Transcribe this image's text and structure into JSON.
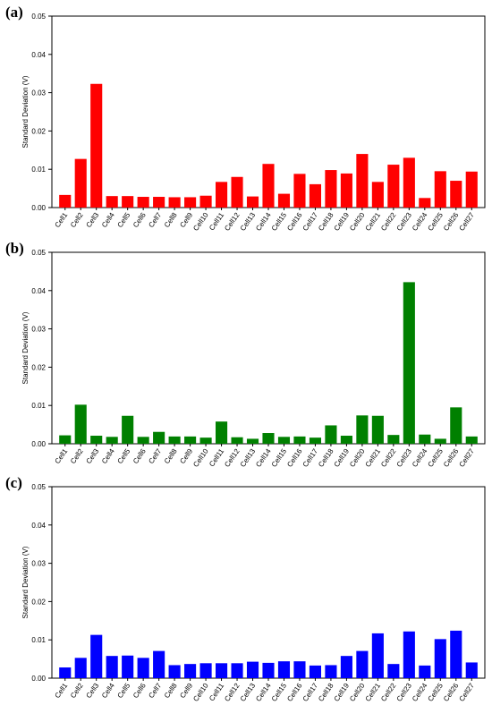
{
  "chart_data": [
    {
      "type": "bar",
      "panel_label": "(a)",
      "color": "#ff0000",
      "ylabel": "Standard Deviation (V)",
      "ylim": [
        0,
        0.05
      ],
      "yticks": [
        "0.00",
        "0.01",
        "0.02",
        "0.03",
        "0.04",
        "0.05"
      ],
      "grid": false,
      "categories": [
        "Cell1",
        "Cell2",
        "Cell3",
        "Cell4",
        "Cell5",
        "Cell6",
        "Cell7",
        "Cell8",
        "Cell9",
        "Cell10",
        "Cell11",
        "Cell12",
        "Cell13",
        "Cell14",
        "Cell15",
        "Cell16",
        "Cell17",
        "Cell18",
        "Cell19",
        "Cell20",
        "Cell21",
        "Cell22",
        "Cell23",
        "Cell24",
        "Cell25",
        "Cell26",
        "Cell27"
      ],
      "values": [
        0.0033,
        0.0127,
        0.0323,
        0.003,
        0.003,
        0.0028,
        0.0028,
        0.0027,
        0.0027,
        0.0031,
        0.0067,
        0.008,
        0.0029,
        0.0114,
        0.0036,
        0.0088,
        0.0061,
        0.0098,
        0.0089,
        0.014,
        0.0067,
        0.0112,
        0.013,
        0.0025,
        0.0095,
        0.007,
        0.0094
      ]
    },
    {
      "type": "bar",
      "panel_label": "(b)",
      "color": "#008000",
      "ylabel": "Standard Deviation (V)",
      "ylim": [
        0,
        0.05
      ],
      "yticks": [
        "0.00",
        "0.01",
        "0.02",
        "0.03",
        "0.04",
        "0.05"
      ],
      "grid": false,
      "categories": [
        "Cell1",
        "Cell2",
        "Cell3",
        "Cell4",
        "Cell5",
        "Cell6",
        "Cell7",
        "Cell8",
        "Cell9",
        "Cell10",
        "Cell11",
        "Cell12",
        "Cell13",
        "Cell14",
        "Cell15",
        "Cell16",
        "Cell17",
        "Cell18",
        "Cell19",
        "Cell20",
        "Cell21",
        "Cell22",
        "Cell23",
        "Cell24",
        "Cell25",
        "Cell26",
        "Cell27"
      ],
      "values": [
        0.0022,
        0.0102,
        0.0021,
        0.0018,
        0.0073,
        0.0018,
        0.0031,
        0.0019,
        0.0019,
        0.0016,
        0.0058,
        0.0017,
        0.0013,
        0.0028,
        0.0018,
        0.0019,
        0.0016,
        0.0048,
        0.0021,
        0.0074,
        0.0073,
        0.0023,
        0.0422,
        0.0024,
        0.0013,
        0.0095,
        0.0019
      ]
    },
    {
      "type": "bar",
      "panel_label": "(c)",
      "color": "#0000ff",
      "ylabel": "Standard Deviation (V)",
      "ylim": [
        0,
        0.05
      ],
      "yticks": [
        "0.00",
        "0.01",
        "0.02",
        "0.03",
        "0.04",
        "0.05"
      ],
      "grid": false,
      "categories": [
        "Cell1",
        "Cell2",
        "Cell3",
        "Cell4",
        "Cell5",
        "Cell6",
        "Cell7",
        "Cell8",
        "Cell9",
        "Cell10",
        "Cell11",
        "Cell12",
        "Cell13",
        "Cell14",
        "Cell15",
        "Cell16",
        "Cell17",
        "Cell18",
        "Cell19",
        "Cell20",
        "Cell21",
        "Cell22",
        "Cell23",
        "Cell24",
        "Cell25",
        "Cell26",
        "Cell27"
      ],
      "values": [
        0.0028,
        0.0053,
        0.0113,
        0.0058,
        0.0059,
        0.0053,
        0.0071,
        0.0034,
        0.0037,
        0.0039,
        0.0039,
        0.0039,
        0.0043,
        0.004,
        0.0044,
        0.0044,
        0.0033,
        0.0034,
        0.0058,
        0.0071,
        0.0117,
        0.0037,
        0.0122,
        0.0033,
        0.0102,
        0.0124,
        0.0041
      ]
    }
  ]
}
